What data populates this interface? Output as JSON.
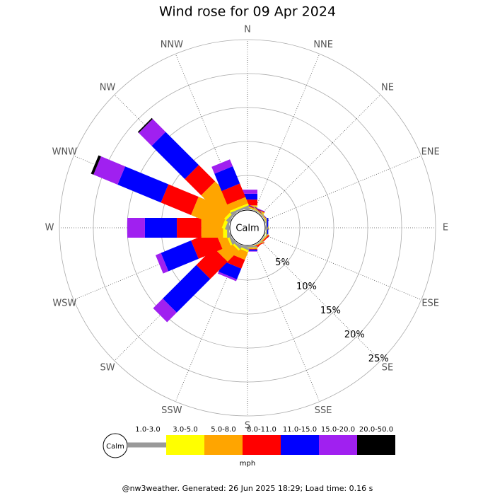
{
  "chart_data": {
    "type": "windrose",
    "title": "Wind rose for 09 Apr 2024",
    "categories": [
      "N",
      "NNE",
      "NE",
      "ENE",
      "E",
      "ESE",
      "SE",
      "SSE",
      "S",
      "SSW",
      "SW",
      "WSW",
      "W",
      "WNW",
      "NW",
      "NNW"
    ],
    "series": [
      {
        "name": "1.0-3.0",
        "color": "#999999",
        "values": [
          0.3,
          0.1,
          0.1,
          0.1,
          0.1,
          0.05,
          0.1,
          0.1,
          0.2,
          0.3,
          0.3,
          0.3,
          0.3,
          0.3,
          0.3,
          0.3
        ]
      },
      {
        "name": "3.0-5.0",
        "color": "#ffff00",
        "values": [
          0.2,
          0.1,
          0.05,
          0.05,
          0.05,
          0.05,
          0.05,
          0.05,
          0.1,
          0.3,
          0.3,
          0.3,
          0.6,
          0.5,
          0.4,
          0.3
        ]
      },
      {
        "name": "5.0-8.0",
        "color": "#ffa500",
        "values": [
          0.1,
          0.1,
          0.05,
          0.05,
          0,
          0,
          0.1,
          0.05,
          0.1,
          1.2,
          2.3,
          1.3,
          3.2,
          4.9,
          4.8,
          1.0
        ]
      },
      {
        "name": "8.0-11.0",
        "color": "#ff0000",
        "values": [
          0.85,
          0.1,
          0.05,
          0,
          0,
          0,
          0.15,
          0.1,
          0.1,
          1.4,
          3.6,
          3.8,
          3.6,
          4.8,
          3.4,
          2.15
        ]
      },
      {
        "name": "11.0-15.0",
        "color": "#0000ff",
        "values": [
          0.85,
          0.05,
          0.05,
          0,
          0.2,
          0,
          0,
          0,
          0.2,
          1.7,
          7.0,
          4.8,
          4.7,
          6.9,
          6.9,
          2.75
        ]
      },
      {
        "name": "15.0-20.0",
        "color": "#a020f0",
        "values": [
          0.6,
          0.05,
          0,
          0,
          0,
          0,
          0,
          0,
          0.1,
          0.3,
          2.0,
          0.85,
          2.6,
          3.85,
          2.7,
          1.1
        ]
      },
      {
        "name": "20.0-50.0",
        "color": "#000000",
        "values": [
          0,
          0,
          0,
          0,
          0,
          0,
          0,
          0,
          0,
          0,
          0,
          0,
          0,
          0.4,
          0.2,
          0
        ]
      }
    ],
    "rlim": [
      0,
      25
    ],
    "rticks": [
      {
        "value": 5,
        "label": "5%"
      },
      {
        "value": 10,
        "label": "10%"
      },
      {
        "value": 15,
        "label": "15%"
      },
      {
        "value": 20,
        "label": "20%"
      },
      {
        "value": 25,
        "label": "25%"
      }
    ],
    "calm_label": "Calm",
    "units": "mph"
  },
  "footer": "@nw3weather. Generated: 26 Jun 2025 18:29; Load time: 0.16 s"
}
